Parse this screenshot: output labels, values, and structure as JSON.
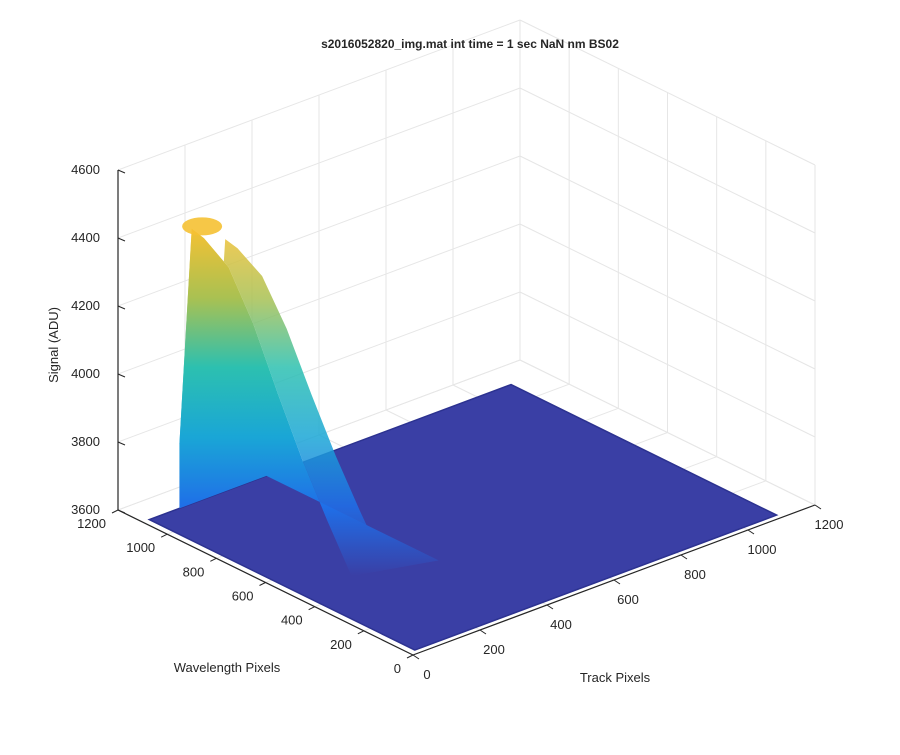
{
  "chart_data": {
    "type": "surface",
    "title": "s2016052820_img.mat int time = 1 sec  NaN nm BS02",
    "xlabel": "Track Pixels",
    "ylabel": "Wavelength Pixels",
    "zlabel": "Signal (ADU)",
    "xlim": [
      0,
      1200
    ],
    "ylim": [
      0,
      1200
    ],
    "zlim": [
      3600,
      4600
    ],
    "xticks": [
      "0",
      "200",
      "400",
      "600",
      "800",
      "1000",
      "1200"
    ],
    "yticks": [
      "0",
      "200",
      "400",
      "600",
      "800",
      "1000",
      "1200"
    ],
    "zticks": [
      "3600",
      "3800",
      "4000",
      "4200",
      "4400",
      "4600"
    ],
    "grid": true,
    "colormap": "parula",
    "surface_extent": {
      "x": [
        0,
        1100
      ],
      "y": [
        0,
        1100
      ]
    },
    "baseline_signal": 3600,
    "peak": {
      "track_pixel": 150,
      "wavelength_pixel": 1050,
      "signal": 4450
    },
    "ridge_profile": {
      "wavelength_pixels": [
        1100,
        1050,
        1000,
        900,
        800,
        700,
        600,
        500,
        400
      ],
      "signal": [
        3790,
        4440,
        4430,
        4380,
        4250,
        4080,
        3920,
        3780,
        3650
      ]
    }
  },
  "colors": {
    "background": "#ffffff",
    "grid": "#e6e6e6",
    "axis": "#262626",
    "surface_base": "#3a3fa5",
    "surface_peak": "#f5c133"
  }
}
